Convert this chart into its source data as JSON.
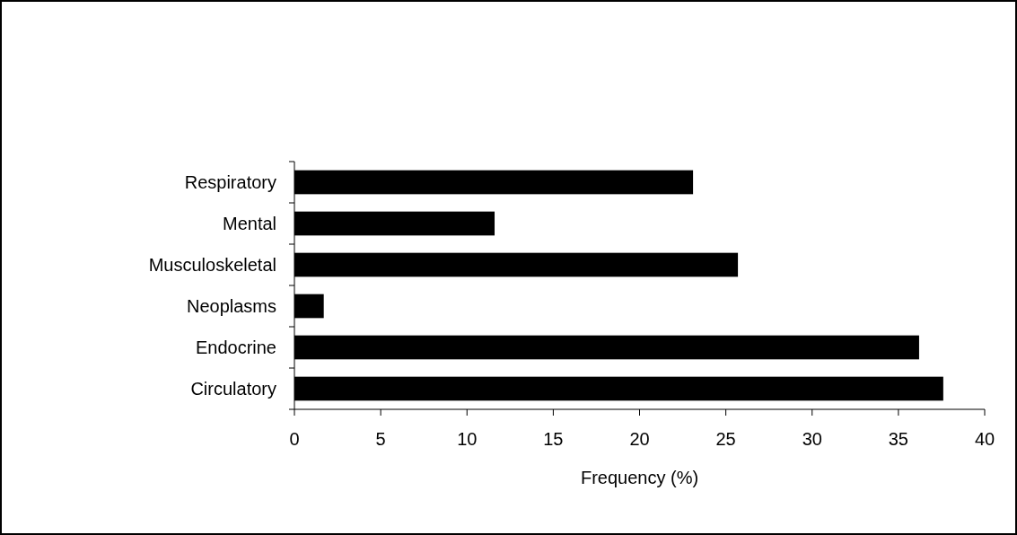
{
  "chart_data": {
    "type": "bar",
    "orientation": "horizontal",
    "categories": [
      "Respiratory",
      "Mental",
      "Musculoskeletal",
      "Neoplasms",
      "Endocrine",
      "Circulatory"
    ],
    "values": [
      23.1,
      11.6,
      25.7,
      1.7,
      36.2,
      37.6
    ],
    "color": "#000000",
    "xlabel": "Frequency (%)",
    "xlim": [
      0,
      40
    ],
    "xticks": [
      0,
      5,
      10,
      15,
      20,
      25,
      30,
      35,
      40
    ],
    "grid": false
  }
}
